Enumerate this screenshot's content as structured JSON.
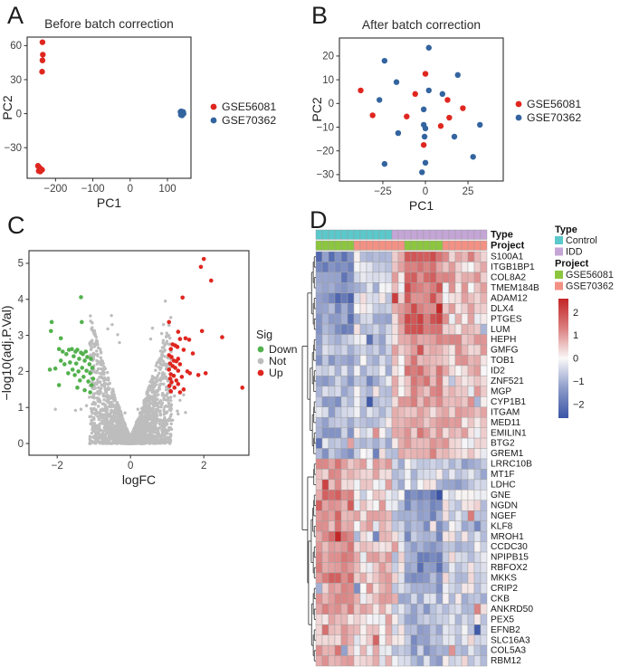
{
  "panels": {
    "a": {
      "letter": "A"
    },
    "b": {
      "letter": "B"
    },
    "c": {
      "letter": "C"
    },
    "d": {
      "letter": "D"
    }
  },
  "chart_data": [
    {
      "id": "A",
      "type": "scatter",
      "title": "Before batch correction",
      "xlabel": "PC1",
      "ylabel": "PC2",
      "xlim": [
        -276,
        163
      ],
      "ylim": [
        -57,
        67.5
      ],
      "xticks": [
        -200,
        -100,
        0,
        100
      ],
      "yticks": [
        -30,
        0,
        30,
        60
      ],
      "series": [
        {
          "name": "GSE56081",
          "color": "#DF261F",
          "points": [
            [
              -235,
              63
            ],
            [
              -234,
              52
            ],
            [
              -235,
              47
            ],
            [
              -236,
              37
            ],
            [
              -247,
              -46
            ],
            [
              -243,
              -47.5
            ],
            [
              -239,
              -49
            ],
            [
              -245,
              -50.5
            ],
            [
              -241,
              -51
            ],
            [
              -236,
              -49.5
            ]
          ]
        },
        {
          "name": "GSE70362",
          "color": "#33649F",
          "points": [
            [
              135,
              1.5
            ],
            [
              138,
              0.5
            ],
            [
              141,
              -0.5
            ],
            [
              137,
              2
            ],
            [
              140,
              1
            ],
            [
              136,
              -1
            ],
            [
              139,
              -1.5
            ],
            [
              143,
              0
            ],
            [
              142,
              1.5
            ],
            [
              137,
              0.2
            ]
          ]
        }
      ]
    },
    {
      "id": "B",
      "type": "scatter",
      "title": "After batch correction",
      "xlabel": "PC1",
      "ylabel": "PC2",
      "xlim": [
        -50.5,
        45.7
      ],
      "ylim": [
        27.6,
        -32.7
      ],
      "xticks": [
        -25,
        0,
        25
      ],
      "yticks": [
        -30,
        -20,
        -10,
        0,
        10,
        20
      ],
      "series": [
        {
          "name": "GSE56081",
          "color": "#DF261F",
          "points": [
            [
              -38,
              5.5
            ],
            [
              -31,
              -5
            ],
            [
              -11,
              -5.5
            ],
            [
              -6,
              4
            ],
            [
              0,
              12.5
            ],
            [
              -1,
              -17.5
            ],
            [
              9,
              -9.5
            ],
            [
              13,
              1.5
            ],
            [
              14,
              -6
            ],
            [
              22,
              -2
            ]
          ]
        },
        {
          "name": "GSE70362",
          "color": "#33649F",
          "points": [
            [
              2,
              23.5
            ],
            [
              -24,
              18
            ],
            [
              -17,
              9
            ],
            [
              19,
              12
            ],
            [
              2,
              5.5
            ],
            [
              10,
              4
            ],
            [
              -27,
              1.5
            ],
            [
              -1,
              -2.5
            ],
            [
              -16,
              -12.5
            ],
            [
              -1,
              -9
            ],
            [
              0,
              -10.5
            ],
            [
              -0.5,
              -14
            ],
            [
              17,
              -14
            ],
            [
              32,
              -9
            ],
            [
              28,
              -22.5
            ],
            [
              0,
              -25
            ],
            [
              -24,
              -25.5
            ],
            [
              -2,
              -29
            ]
          ]
        }
      ]
    },
    {
      "id": "C",
      "type": "scatter",
      "title": "",
      "xlabel": "logFC",
      "ylabel": "−log10(adj.P.Val)",
      "xlim": [
        -2.77,
        3.23
      ],
      "ylim": [
        5.35,
        -0.325
      ],
      "xticks": [
        -2,
        0,
        2
      ],
      "yticks": [
        0,
        1,
        2,
        3,
        4,
        5
      ],
      "legend_title": "Sig",
      "series": [
        {
          "name": "Not",
          "color": "#BDBDBD",
          "cloud": {
            "count": 2600,
            "seed": 11,
            "xspread": 1.12,
            "ymax": 3.45,
            "xexp": 1.7,
            "yexp": 1.5,
            "envexp": 1.1,
            "ybase": 0.18
          },
          "points": [
            [
              -0.52,
              3.55
            ],
            [
              -0.5,
              3.3
            ],
            [
              -0.62,
              3.18
            ],
            [
              0.95,
              3.95
            ],
            [
              0.9,
              3.3
            ],
            [
              0.85,
              3.05
            ],
            [
              -0.35,
              3.02
            ],
            [
              0.55,
              2.9
            ],
            [
              0.6,
              3.2
            ],
            [
              -0.3,
              2.8
            ],
            [
              1.2,
              1.32
            ],
            [
              1.35,
              1.2
            ],
            [
              1.5,
              0.86
            ],
            [
              -1.2,
              1.05
            ],
            [
              -1.35,
              0.95
            ],
            [
              -1.05,
              0.95
            ],
            [
              1.28,
              0.9
            ],
            [
              -1.5,
              0.92
            ],
            [
              0.2,
              0.95
            ],
            [
              -0.15,
              0.85
            ],
            [
              1.15,
              0.65
            ],
            [
              1.3,
              0.82
            ],
            [
              -2.05,
              0.95
            ],
            [
              1.45,
              1.35
            ],
            [
              1.1,
              1.28
            ]
          ]
        },
        {
          "name": "Down",
          "color": "#53B14E",
          "points": [
            [
              -2.15,
              3.37
            ],
            [
              -2.17,
              3.12
            ],
            [
              -1.9,
              2.92
            ],
            [
              -1.35,
              4.06
            ],
            [
              -1.33,
              3.37
            ],
            [
              -2.2,
              2.05
            ],
            [
              -1.95,
              2.62
            ],
            [
              -1.9,
              2.3
            ],
            [
              -1.85,
              2.55
            ],
            [
              -1.8,
              2.2
            ],
            [
              -1.75,
              2.48
            ],
            [
              -1.7,
              1.95
            ],
            [
              -1.68,
              2.6
            ],
            [
              -1.65,
              2.25
            ],
            [
              -1.6,
              2.62
            ],
            [
              -1.58,
              2.05
            ],
            [
              -1.55,
              2.42
            ],
            [
              -1.52,
              1.9
            ],
            [
              -1.5,
              2.55
            ],
            [
              -1.48,
              2.22
            ],
            [
              -1.45,
              2.6
            ],
            [
              -1.42,
              2.0
            ],
            [
              -1.4,
              2.35
            ],
            [
              -1.38,
              1.75
            ],
            [
              -1.35,
              2.52
            ],
            [
              -1.32,
              2.1
            ],
            [
              -1.3,
              2.48
            ],
            [
              -1.28,
              1.85
            ],
            [
              -1.25,
              2.3
            ],
            [
              -1.22,
              2.55
            ],
            [
              -1.2,
              2.02
            ],
            [
              -1.18,
              2.4
            ],
            [
              -1.15,
              1.72
            ],
            [
              -1.12,
              2.2
            ],
            [
              -1.1,
              1.95
            ],
            [
              -1.08,
              2.35
            ],
            [
              -1.06,
              1.62
            ],
            [
              -1.04,
              2.1
            ],
            [
              -1.02,
              1.8
            ],
            [
              -1.95,
              1.62
            ],
            [
              -1.45,
              1.55
            ],
            [
              -1.25,
              1.48
            ],
            [
              -1.1,
              1.42
            ],
            [
              -2.05,
              2.08
            ]
          ]
        },
        {
          "name": "Up",
          "color": "#DF261F",
          "points": [
            [
              2.0,
              5.12
            ],
            [
              1.92,
              4.9
            ],
            [
              2.2,
              4.52
            ],
            [
              1.42,
              4.05
            ],
            [
              1.05,
              3.37
            ],
            [
              1.3,
              3.1
            ],
            [
              1.95,
              3.12
            ],
            [
              2.5,
              2.95
            ],
            [
              3.05,
              1.55
            ],
            [
              1.35,
              2.9
            ],
            [
              1.5,
              2.92
            ],
            [
              1.6,
              2.88
            ],
            [
              1.15,
              2.75
            ],
            [
              1.22,
              2.72
            ],
            [
              1.28,
              2.68
            ],
            [
              1.1,
              2.62
            ],
            [
              1.45,
              2.6
            ],
            [
              1.7,
              2.5
            ],
            [
              1.05,
              2.45
            ],
            [
              1.12,
              2.4
            ],
            [
              1.3,
              2.35
            ],
            [
              1.18,
              2.3
            ],
            [
              1.25,
              2.28
            ],
            [
              1.08,
              2.22
            ],
            [
              1.35,
              2.2
            ],
            [
              1.15,
              2.15
            ],
            [
              1.22,
              2.1
            ],
            [
              1.05,
              2.05
            ],
            [
              1.3,
              2.02
            ],
            [
              1.55,
              2.0
            ],
            [
              1.62,
              1.95
            ],
            [
              1.1,
              1.92
            ],
            [
              1.18,
              1.88
            ],
            [
              1.4,
              1.85
            ],
            [
              1.08,
              1.8
            ],
            [
              1.25,
              1.75
            ],
            [
              1.12,
              1.7
            ],
            [
              1.3,
              1.65
            ],
            [
              1.06,
              1.6
            ],
            [
              1.2,
              1.55
            ],
            [
              1.45,
              1.5
            ],
            [
              1.1,
              1.45
            ],
            [
              1.35,
              1.42
            ],
            [
              2.05,
              1.95
            ],
            [
              1.85,
              1.9
            ]
          ]
        }
      ]
    },
    {
      "id": "D",
      "type": "heatmap",
      "row_labels": [
        "S100A1",
        "ITGB1BP1",
        "COL8A2",
        "TMEM184B",
        "ADAM12",
        "DLX4",
        "PTGES",
        "LUM",
        "HEPH",
        "GMFG",
        "TOB1",
        "ID2",
        "ZNF521",
        "MGP",
        "CYP1B1",
        "ITGAM",
        "MED11",
        "EMILIN1",
        "BTG2",
        "GREM1",
        "LRRC10B",
        "MT1F",
        "LDHC",
        "GNE",
        "NGDN",
        "NGEF",
        "KLF8",
        "MROH1",
        "CCDC30",
        "NPIPB15",
        "RBFOX2",
        "MKKS",
        "CRIP2",
        "CKB",
        "ANKRD50",
        "PEX5",
        "EFNB2",
        "SLC16A3",
        "COL5A3",
        "RBM12"
      ],
      "annotation_row_labels": [
        "Type",
        "Project"
      ],
      "column_groups": [
        {
          "n": 6,
          "type": "Control",
          "project": "GSE56081",
          "mean_index": 0
        },
        {
          "n": 6,
          "type": "Control",
          "project": "GSE70362",
          "mean_index": 1
        },
        {
          "n": 2,
          "type": "IDD",
          "project": "GSE70362",
          "mean_index": 3
        },
        {
          "n": 6,
          "type": "IDD",
          "project": "GSE56081",
          "mean_index": 2
        },
        {
          "n": 7,
          "type": "IDD",
          "project": "GSE70362",
          "mean_index": 3
        }
      ],
      "group_means": [
        [
          -1.6,
          -0.4,
          1.6,
          0.8
        ],
        [
          -1.4,
          -0.5,
          1.4,
          0.6
        ],
        [
          -1.5,
          -0.3,
          1.3,
          0.7
        ],
        [
          -1.3,
          -0.6,
          1.5,
          0.5
        ],
        [
          -1.7,
          -0.4,
          1.4,
          0.5
        ],
        [
          -1.2,
          -0.5,
          1.6,
          0.4
        ],
        [
          -1.5,
          -0.6,
          1.7,
          0.5
        ],
        [
          -1.3,
          -0.4,
          1.8,
          0.4
        ],
        [
          -0.9,
          -0.6,
          0.9,
          0.7
        ],
        [
          -0.8,
          -0.5,
          0.8,
          0.6
        ],
        [
          -0.9,
          -0.4,
          1.0,
          0.5
        ],
        [
          -0.7,
          -0.6,
          1.1,
          0.6
        ],
        [
          -1.0,
          -0.5,
          0.9,
          0.5
        ],
        [
          -0.8,
          -0.4,
          1.0,
          0.4
        ],
        [
          -0.9,
          -0.6,
          0.9,
          0.6
        ],
        [
          -0.7,
          -0.5,
          0.8,
          0.7
        ],
        [
          -0.8,
          -0.4,
          0.7,
          0.6
        ],
        [
          -0.9,
          -0.5,
          0.9,
          0.5
        ],
        [
          -0.7,
          -0.6,
          0.8,
          0.5
        ],
        [
          -1.1,
          -0.3,
          0.9,
          0.4
        ],
        [
          0.9,
          0.5,
          -0.4,
          -0.8
        ],
        [
          0.8,
          0.6,
          -0.5,
          -0.7
        ],
        [
          0.7,
          0.5,
          -0.4,
          -0.8
        ],
        [
          1.3,
          0.5,
          -1.4,
          -0.4
        ],
        [
          1.2,
          0.4,
          -1.5,
          -0.3
        ],
        [
          1.1,
          0.5,
          -1.3,
          -0.4
        ],
        [
          1.0,
          0.4,
          -1.2,
          -0.5
        ],
        [
          1.2,
          0.5,
          -1.1,
          -0.3
        ],
        [
          1.1,
          0.3,
          -1.4,
          -0.4
        ],
        [
          1.3,
          0.4,
          -1.2,
          -0.3
        ],
        [
          1.0,
          0.5,
          -1.5,
          -0.4
        ],
        [
          1.2,
          0.4,
          -1.3,
          -0.3
        ],
        [
          0.9,
          0.5,
          -0.9,
          -0.4
        ],
        [
          0.8,
          0.4,
          -0.8,
          -0.5
        ],
        [
          1.0,
          0.3,
          -1.0,
          -0.4
        ],
        [
          0.7,
          0.4,
          -0.9,
          -0.3
        ],
        [
          0.9,
          0.5,
          -0.8,
          -0.4
        ],
        [
          0.8,
          0.3,
          -1.0,
          -0.3
        ],
        [
          0.9,
          0.4,
          -0.9,
          -0.4
        ],
        [
          0.6,
          0.3,
          -0.8,
          -0.3
        ]
      ],
      "noise": {
        "seed": 5,
        "amplitude": 1.25
      },
      "legend": {
        "type_title": "Type",
        "type_items": [
          {
            "label": "Control",
            "color": "#5BC8CB"
          },
          {
            "label": "IDD",
            "color": "#C4A5D6"
          }
        ],
        "project_title": "Project",
        "project_items": [
          {
            "label": "GSE56081",
            "color": "#8CC63F"
          },
          {
            "label": "GSE70362",
            "color": "#F39184"
          }
        ]
      },
      "colorbar": {
        "ticks": [
          2,
          1,
          0,
          -1,
          -2
        ],
        "vmin": -2.6,
        "vmax": 2.6,
        "colors": {
          "pos": "#C42626",
          "zero": "#FAF9F9",
          "neg": "#3B55A6"
        }
      }
    }
  ]
}
